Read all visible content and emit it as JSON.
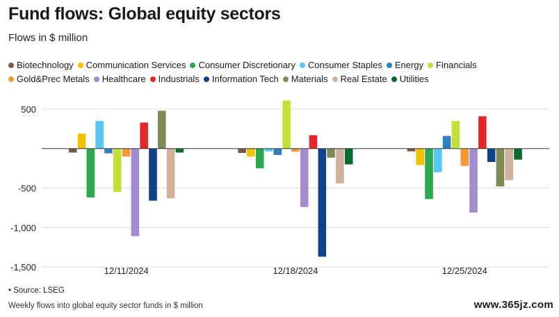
{
  "title": "Fund flows: Global equity sectors",
  "subtitle": "Flows in $ million",
  "source": "• Source: LSEG",
  "footnote": "Weekly flows into global equity sector funds in $ million",
  "watermark": "www.365jz.com",
  "chart_data": {
    "type": "bar",
    "categories": [
      "12/11/2024",
      "12/18/2024",
      "12/25/2024"
    ],
    "ylim": [
      -1500,
      650
    ],
    "yticks": [
      500,
      0,
      -500,
      -1000,
      -1500
    ],
    "ytick_labels": [
      "500",
      "",
      "-500",
      "-1,000",
      "-1,500"
    ],
    "grid": true,
    "legend_position": "top",
    "series": [
      {
        "name": "Biotechnology",
        "color": "#7a5a48",
        "values": [
          -50,
          -55,
          -35
        ]
      },
      {
        "name": "Communication Services",
        "color": "#f2c200",
        "values": [
          190,
          -100,
          -210
        ]
      },
      {
        "name": "Consumer Discretionary",
        "color": "#2ea84f",
        "values": [
          -620,
          -250,
          -640
        ]
      },
      {
        "name": "Consumer Staples",
        "color": "#56c8f5",
        "values": [
          350,
          -35,
          -300
        ]
      },
      {
        "name": "Energy",
        "color": "#2f7fc1",
        "values": [
          -60,
          -80,
          160
        ]
      },
      {
        "name": "Financials",
        "color": "#c5df3a",
        "values": [
          -550,
          610,
          350
        ]
      },
      {
        "name": "Gold&Prec Metals",
        "color": "#f39a35",
        "values": [
          -100,
          -40,
          -220
        ]
      },
      {
        "name": "Healthcare",
        "color": "#a58ccf",
        "values": [
          -1110,
          -740,
          -810
        ]
      },
      {
        "name": "Industrials",
        "color": "#e3262c",
        "values": [
          330,
          170,
          410
        ]
      },
      {
        "name": "Information Tech",
        "color": "#12428a",
        "values": [
          -660,
          -1370,
          -170
        ]
      },
      {
        "name": "Materials",
        "color": "#7d8c55",
        "values": [
          480,
          -115,
          -480
        ]
      },
      {
        "name": "Real Estate",
        "color": "#d2b19a",
        "values": [
          -630,
          -440,
          -400
        ]
      },
      {
        "name": "Utilities",
        "color": "#0c6b2c",
        "values": [
          -50,
          -200,
          -140
        ]
      }
    ]
  }
}
